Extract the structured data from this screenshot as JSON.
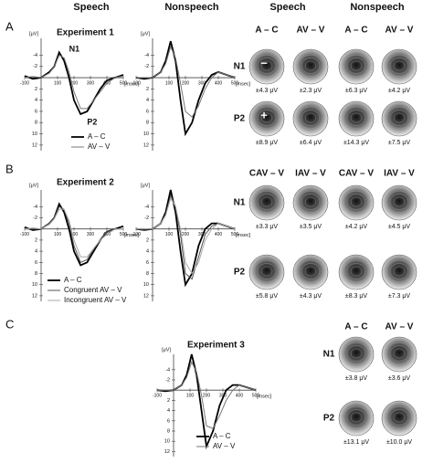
{
  "wave_headers": [
    "Speech",
    "Nonspeech"
  ],
  "map_headers": [
    "Speech",
    "Nonspeech"
  ],
  "panels": [
    {
      "letter": "A",
      "title": "Experiment 1",
      "maps": {
        "headers": [
          "A – C",
          "AV – V",
          "A – C",
          "AV – V"
        ],
        "polarity": [
          "−",
          "+"
        ],
        "rows": [
          {
            "label": "N1",
            "values": [
              "±4.3 μV",
              "±2.3 μV",
              "±6.3 μV",
              "±4.2 μV"
            ]
          },
          {
            "label": "P2",
            "values": [
              "±8.9 μV",
              "±6.4 μV",
              "±14.3 μV",
              "±7.5 μV"
            ]
          }
        ]
      }
    },
    {
      "letter": "B",
      "title": "Experiment 2",
      "maps": {
        "headers": [
          "CAV – V",
          "IAV – V",
          "CAV – V",
          "IAV – V"
        ],
        "rows": [
          {
            "label": "N1",
            "values": [
              "±3.3 μV",
              "±3.5 μV",
              "±4.2 μV",
              "±4.5 μV"
            ]
          },
          {
            "label": "P2",
            "values": [
              "±5.8 μV",
              "±4.3 μV",
              "±8.3 μV",
              "±7.3 μV"
            ]
          }
        ]
      }
    },
    {
      "letter": "C",
      "title": "Experiment 3",
      "maps": {
        "headers": [
          "A – C",
          "AV – V"
        ],
        "rows": [
          {
            "label": "N1",
            "values": [
              "±3.8 μV",
              "±3.6 μV"
            ]
          },
          {
            "label": "P2",
            "values": [
              "±13.1 μV",
              "±10.0 μV"
            ]
          }
        ]
      }
    }
  ],
  "chart_data": [
    {
      "type": "line",
      "ylabel": "[μV]",
      "xlabel": "[msec]",
      "y_inverted": true,
      "legend": true,
      "xlim": [
        -100,
        500
      ],
      "ylim": [
        -7,
        13
      ],
      "xticks": [
        -100,
        100,
        200,
        300,
        400,
        500
      ],
      "yticks": [
        -4,
        -2,
        2,
        4,
        6,
        8,
        10,
        12
      ],
      "x": [
        -100,
        -50,
        0,
        50,
        80,
        110,
        140,
        170,
        200,
        240,
        280,
        320,
        360,
        400,
        450,
        500
      ],
      "annotations": [
        {
          "text": "N1",
          "x": 170,
          "y": -5
        },
        {
          "text": "P2",
          "x": 280,
          "y": 8
        }
      ],
      "series": [
        {
          "name": "A – C",
          "color": "#000000",
          "values": [
            -0.3,
            0.2,
            0,
            -1,
            -2,
            -4.5,
            -3,
            0,
            4,
            6.5,
            6,
            4,
            2,
            0.5,
            0,
            -0.5
          ]
        },
        {
          "name": "AV – V",
          "color": "#777777",
          "values": [
            0,
            -0.2,
            0,
            -0.8,
            -2,
            -4,
            -3.5,
            -1,
            2.5,
            5.5,
            5.5,
            4,
            2.5,
            1,
            0,
            -0.3
          ]
        }
      ]
    },
    {
      "type": "line",
      "ylabel": "[μV]",
      "xlabel": "[msec]",
      "y_inverted": true,
      "legend": false,
      "xlim": [
        -100,
        500
      ],
      "ylim": [
        -7,
        13
      ],
      "xticks": [
        -100,
        100,
        200,
        300,
        400,
        500
      ],
      "yticks": [
        -4,
        -2,
        2,
        4,
        6,
        8,
        10,
        12
      ],
      "x": [
        -100,
        -50,
        0,
        50,
        80,
        110,
        140,
        170,
        200,
        240,
        280,
        320,
        360,
        400,
        450,
        500
      ],
      "series": [
        {
          "name": "A – C",
          "color": "#000000",
          "values": [
            0,
            0.2,
            0,
            -1,
            -3,
            -6.5,
            -3,
            4,
            10,
            8,
            4,
            1,
            -0.5,
            -1,
            -0.5,
            0
          ]
        },
        {
          "name": "AV – V",
          "color": "#777777",
          "values": [
            0,
            0,
            0,
            -1,
            -2.5,
            -5.5,
            -3.5,
            1,
            6,
            7,
            5,
            2,
            0,
            -1,
            -0.5,
            0
          ]
        }
      ]
    },
    {
      "type": "line",
      "ylabel": "[μV]",
      "xlabel": "[msec]",
      "y_inverted": true,
      "legend": true,
      "xlim": [
        -100,
        500
      ],
      "ylim": [
        -7,
        13
      ],
      "xticks": [
        -100,
        100,
        200,
        300,
        400,
        500
      ],
      "yticks": [
        -4,
        -2,
        2,
        4,
        6,
        8,
        10,
        12
      ],
      "x": [
        -100,
        -50,
        0,
        50,
        80,
        110,
        140,
        170,
        200,
        240,
        280,
        320,
        360,
        400,
        450,
        500
      ],
      "series": [
        {
          "name": "A – C",
          "color": "#000000",
          "values": [
            -0.3,
            0.2,
            0,
            -1,
            -2,
            -4.5,
            -3,
            0,
            4,
            6.5,
            6,
            4,
            2,
            0.5,
            0,
            -0.5
          ]
        },
        {
          "name": "Congruent AV – V",
          "color": "#555555",
          "values": [
            0,
            0,
            0,
            -1,
            -2,
            -4,
            -3.5,
            -1,
            3,
            6,
            5.5,
            3.5,
            2,
            0.5,
            0,
            0
          ]
        },
        {
          "name": "Incongruent AV – V",
          "color": "#aaaaaa",
          "values": [
            0,
            -0.2,
            0,
            -0.8,
            -1.8,
            -3.5,
            -3.5,
            -1.5,
            2,
            5,
            5,
            3.5,
            2,
            1,
            0,
            0
          ]
        }
      ]
    },
    {
      "type": "line",
      "ylabel": "[μV]",
      "xlabel": "[msec]",
      "y_inverted": true,
      "legend": false,
      "xlim": [
        -100,
        500
      ],
      "ylim": [
        -7,
        13
      ],
      "xticks": [
        -100,
        100,
        200,
        300,
        400,
        500
      ],
      "yticks": [
        -4,
        -2,
        2,
        4,
        6,
        8,
        10,
        12
      ],
      "x": [
        -100,
        -50,
        0,
        50,
        80,
        110,
        140,
        170,
        200,
        240,
        280,
        320,
        360,
        400,
        450,
        500
      ],
      "series": [
        {
          "name": "A – C",
          "color": "#000000",
          "values": [
            0,
            0.2,
            0,
            -1,
            -3,
            -7,
            -3,
            4,
            10,
            8,
            3,
            0,
            -1,
            -1,
            -0.5,
            0
          ]
        },
        {
          "name": "Congruent AV – V",
          "color": "#555555",
          "values": [
            0,
            0,
            0,
            -1,
            -2.5,
            -6,
            -4,
            1,
            8,
            9,
            5,
            1,
            -0.5,
            -1,
            -0.5,
            0
          ]
        },
        {
          "name": "Incongruent AV – V",
          "color": "#aaaaaa",
          "values": [
            0,
            0,
            0,
            -1,
            -2.5,
            -5.5,
            -4,
            0,
            6,
            8,
            6,
            2,
            0,
            -1,
            -0.5,
            0
          ]
        }
      ]
    },
    {
      "type": "line",
      "ylabel": "[μV]",
      "xlabel": "[msec]",
      "y_inverted": true,
      "legend": true,
      "xlim": [
        -100,
        500
      ],
      "ylim": [
        -7,
        13
      ],
      "xticks": [
        -100,
        100,
        200,
        300,
        400,
        500
      ],
      "yticks": [
        -4,
        -2,
        2,
        4,
        6,
        8,
        10,
        12
      ],
      "x": [
        -100,
        -50,
        0,
        50,
        80,
        110,
        140,
        170,
        200,
        240,
        280,
        320,
        360,
        400,
        450,
        500
      ],
      "series": [
        {
          "name": "A – C",
          "color": "#000000",
          "values": [
            0,
            0.2,
            0,
            -1,
            -3,
            -7,
            -3,
            4,
            11,
            8,
            3,
            0,
            -1,
            -1,
            -0.5,
            0
          ]
        },
        {
          "name": "AV – V",
          "color": "#777777",
          "values": [
            0,
            0,
            0,
            -1,
            -2.5,
            -5.5,
            -3.5,
            1,
            7,
            7.5,
            5,
            2,
            0,
            -1,
            -0.5,
            0
          ]
        }
      ]
    }
  ]
}
